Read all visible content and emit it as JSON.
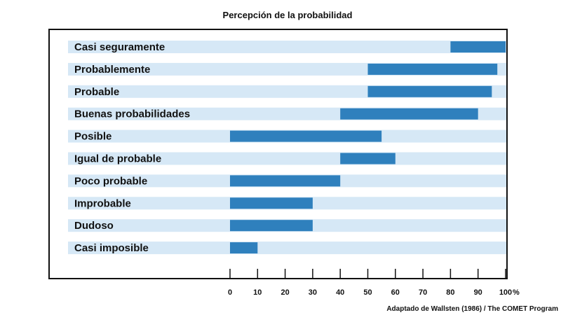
{
  "chart_data": {
    "type": "bar",
    "orientation": "horizontal-range",
    "title": "Percepción de la probabilidad",
    "source": "Adaptado de Wallsten (1986) / The COMET Program",
    "x_unit": "%",
    "xlim": [
      0,
      100
    ],
    "x_ticks": [
      0,
      10,
      20,
      30,
      40,
      50,
      60,
      70,
      80,
      90,
      100
    ],
    "grid": false,
    "colors": {
      "bar": "#2f80bd",
      "band": "#d6e8f6",
      "frame": "#111111"
    },
    "categories": [
      {
        "label": "Casi seguramente",
        "low": 80,
        "high": 100
      },
      {
        "label": "Probablemente",
        "low": 50,
        "high": 97
      },
      {
        "label": "Probable",
        "low": 50,
        "high": 95
      },
      {
        "label": "Buenas probabilidades",
        "low": 40,
        "high": 90
      },
      {
        "label": "Posible",
        "low": 0,
        "high": 55
      },
      {
        "label": "Igual de probable",
        "low": 40,
        "high": 60
      },
      {
        "label": "Poco probable",
        "low": 0,
        "high": 40
      },
      {
        "label": "Improbable",
        "low": 0,
        "high": 30
      },
      {
        "label": "Dudoso",
        "low": 0,
        "high": 30
      },
      {
        "label": "Casi imposible",
        "low": 0,
        "high": 10
      }
    ]
  }
}
